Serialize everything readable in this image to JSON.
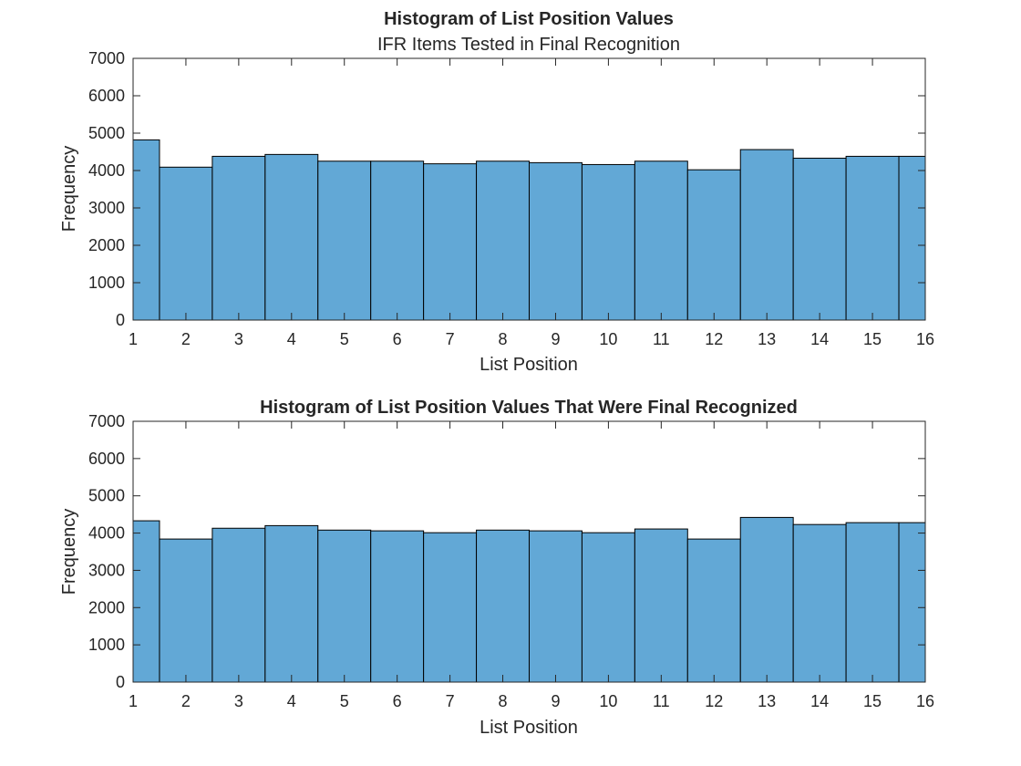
{
  "chart_data": [
    {
      "type": "bar",
      "title": "Histogram of List Position Values",
      "subtitle": "IFR Items Tested in Final Recognition",
      "xlabel": "List Position",
      "ylabel": "Frequency",
      "xlim": [
        1,
        16
      ],
      "ylim": [
        0,
        7000
      ],
      "xticks": [
        "1",
        "2",
        "3",
        "4",
        "5",
        "6",
        "7",
        "8",
        "9",
        "10",
        "11",
        "12",
        "13",
        "14",
        "15",
        "16"
      ],
      "yticks": [
        "0",
        "1000",
        "2000",
        "3000",
        "4000",
        "5000",
        "6000",
        "7000"
      ],
      "bar_color": "#62A8D6",
      "edge_color": "#000000",
      "bins": [
        {
          "x0": 1.0,
          "x1": 1.5,
          "value": 4820
        },
        {
          "x0": 1.5,
          "x1": 2.5,
          "value": 4090
        },
        {
          "x0": 2.5,
          "x1": 3.5,
          "value": 4380
        },
        {
          "x0": 3.5,
          "x1": 4.5,
          "value": 4430
        },
        {
          "x0": 4.5,
          "x1": 5.5,
          "value": 4250
        },
        {
          "x0": 5.5,
          "x1": 6.5,
          "value": 4250
        },
        {
          "x0": 6.5,
          "x1": 7.5,
          "value": 4180
        },
        {
          "x0": 7.5,
          "x1": 8.5,
          "value": 4250
        },
        {
          "x0": 8.5,
          "x1": 9.5,
          "value": 4210
        },
        {
          "x0": 9.5,
          "x1": 10.5,
          "value": 4160
        },
        {
          "x0": 10.5,
          "x1": 11.5,
          "value": 4250
        },
        {
          "x0": 11.5,
          "x1": 12.5,
          "value": 4020
        },
        {
          "x0": 12.5,
          "x1": 13.5,
          "value": 4560
        },
        {
          "x0": 13.5,
          "x1": 14.5,
          "value": 4330
        },
        {
          "x0": 14.5,
          "x1": 15.5,
          "value": 4380
        },
        {
          "x0": 15.5,
          "x1": 16.0,
          "value": 4380
        }
      ]
    },
    {
      "type": "bar",
      "title": "Histogram of List Position Values That Were Final Recognized",
      "xlabel": "List Position",
      "ylabel": "Frequency",
      "xlim": [
        1,
        16
      ],
      "ylim": [
        0,
        7000
      ],
      "xticks": [
        "1",
        "2",
        "3",
        "4",
        "5",
        "6",
        "7",
        "8",
        "9",
        "10",
        "11",
        "12",
        "13",
        "14",
        "15",
        "16"
      ],
      "yticks": [
        "0",
        "1000",
        "2000",
        "3000",
        "4000",
        "5000",
        "6000",
        "7000"
      ],
      "bar_color": "#62A8D6",
      "edge_color": "#000000",
      "bins": [
        {
          "x0": 1.0,
          "x1": 1.5,
          "value": 4330
        },
        {
          "x0": 1.5,
          "x1": 2.5,
          "value": 3840
        },
        {
          "x0": 2.5,
          "x1": 3.5,
          "value": 4130
        },
        {
          "x0": 3.5,
          "x1": 4.5,
          "value": 4200
        },
        {
          "x0": 4.5,
          "x1": 5.5,
          "value": 4080
        },
        {
          "x0": 5.5,
          "x1": 6.5,
          "value": 4060
        },
        {
          "x0": 6.5,
          "x1": 7.5,
          "value": 4010
        },
        {
          "x0": 7.5,
          "x1": 8.5,
          "value": 4080
        },
        {
          "x0": 8.5,
          "x1": 9.5,
          "value": 4060
        },
        {
          "x0": 9.5,
          "x1": 10.5,
          "value": 4010
        },
        {
          "x0": 10.5,
          "x1": 11.5,
          "value": 4110
        },
        {
          "x0": 11.5,
          "x1": 12.5,
          "value": 3840
        },
        {
          "x0": 12.5,
          "x1": 13.5,
          "value": 4420
        },
        {
          "x0": 13.5,
          "x1": 14.5,
          "value": 4230
        },
        {
          "x0": 14.5,
          "x1": 15.5,
          "value": 4280
        },
        {
          "x0": 15.5,
          "x1": 16.0,
          "value": 4280
        }
      ]
    }
  ]
}
